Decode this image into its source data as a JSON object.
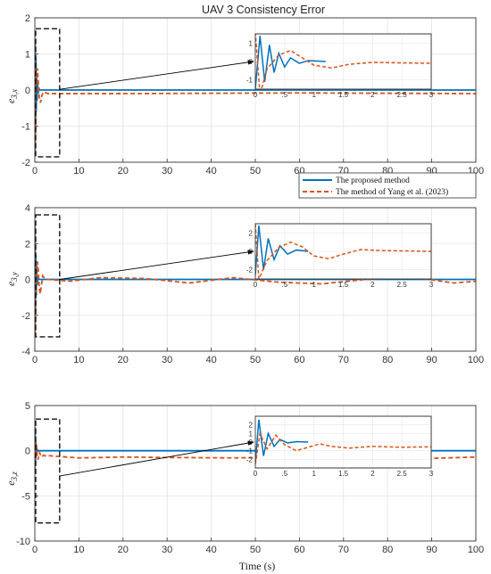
{
  "title": "UAV 3 Consistency Error",
  "xlabel": "Time (s)",
  "legend": [
    {
      "label": "The proposed method",
      "color": "#0072BD",
      "style": "solid"
    },
    {
      "label": "The method of Yang et al. (2023)",
      "color": "#D95319",
      "style": "dashed"
    }
  ],
  "chart_data": [
    {
      "type": "line",
      "ylabel_tex": {
        "base": "e",
        "sub": "3,x"
      },
      "xlim": [
        0,
        100
      ],
      "ylim": [
        -2,
        2
      ],
      "xticks": [
        0,
        10,
        20,
        30,
        40,
        50,
        60,
        70,
        80,
        90,
        100
      ],
      "yticks": [
        -2,
        -1,
        0,
        1,
        2
      ],
      "grid": true,
      "zoom_box": {
        "x": [
          0,
          3
        ],
        "y": [
          -1.85,
          1.7
        ]
      },
      "inset": {
        "xlim": [
          0,
          3
        ],
        "ylim": [
          -1.5,
          1.5
        ],
        "xticks": [
          0,
          0.5,
          1,
          1.5,
          2,
          2.5,
          3
        ],
        "yticks": [
          -1,
          0,
          1
        ]
      },
      "series": [
        {
          "name": "The proposed method",
          "color": "#0072BD",
          "dash": false,
          "points": [
            [
              0,
              -1.5
            ],
            [
              0.08,
              1.4
            ],
            [
              0.16,
              -1.1
            ],
            [
              0.24,
              0.9
            ],
            [
              0.32,
              -0.6
            ],
            [
              0.4,
              0.45
            ],
            [
              0.5,
              -0.3
            ],
            [
              0.6,
              0.2
            ],
            [
              0.75,
              -0.1
            ],
            [
              0.9,
              0.05
            ],
            [
              1.2,
              0
            ],
            [
              100,
              0
            ]
          ]
        },
        {
          "name": "The method of Yang et al. (2023)",
          "color": "#D95319",
          "dash": true,
          "points": [
            [
              0,
              1.6
            ],
            [
              0.08,
              -1.8
            ],
            [
              0.2,
              -0.4
            ],
            [
              0.4,
              0.35
            ],
            [
              0.6,
              0.6
            ],
            [
              0.8,
              0.2
            ],
            [
              1.0,
              -0.2
            ],
            [
              1.3,
              -0.35
            ],
            [
              1.6,
              -0.15
            ],
            [
              2.0,
              -0.05
            ],
            [
              3,
              -0.1
            ],
            [
              20,
              -0.1
            ],
            [
              60,
              -0.08
            ],
            [
              100,
              -0.1
            ]
          ]
        }
      ]
    },
    {
      "type": "line",
      "ylabel_tex": {
        "base": "e",
        "sub": "3,y"
      },
      "xlim": [
        0,
        100
      ],
      "ylim": [
        -4,
        4
      ],
      "xticks": [
        0,
        10,
        20,
        30,
        40,
        50,
        60,
        70,
        80,
        90,
        100
      ],
      "yticks": [
        -4,
        -2,
        0,
        2,
        4
      ],
      "grid": true,
      "zoom_box": {
        "x": [
          0,
          3
        ],
        "y": [
          -3.2,
          3.6
        ]
      },
      "inset": {
        "xlim": [
          0,
          3
        ],
        "ylim": [
          -3,
          3
        ],
        "xticks": [
          0,
          0.5,
          1,
          1.5,
          2,
          2.5,
          3
        ],
        "yticks": [
          -2,
          0,
          2
        ]
      },
      "series": [
        {
          "name": "The proposed method",
          "color": "#0072BD",
          "dash": false,
          "points": [
            [
              0,
              -2.6
            ],
            [
              0.06,
              2.8
            ],
            [
              0.14,
              -2.0
            ],
            [
              0.22,
              1.4
            ],
            [
              0.32,
              -0.9
            ],
            [
              0.42,
              0.6
            ],
            [
              0.55,
              -0.3
            ],
            [
              0.7,
              0.15
            ],
            [
              0.9,
              0
            ],
            [
              100,
              0
            ]
          ]
        },
        {
          "name": "The method of Yang et al. (2023)",
          "color": "#D95319",
          "dash": true,
          "points": [
            [
              0,
              3.0
            ],
            [
              0.06,
              -3.0
            ],
            [
              0.2,
              -1.0
            ],
            [
              0.4,
              0.4
            ],
            [
              0.6,
              1.0
            ],
            [
              0.8,
              0.5
            ],
            [
              1.0,
              -0.5
            ],
            [
              1.25,
              -0.8
            ],
            [
              1.5,
              -0.3
            ],
            [
              1.8,
              0.2
            ],
            [
              2.1,
              0.1
            ],
            [
              3,
              0
            ],
            [
              8,
              -0.1
            ],
            [
              15,
              0.1
            ],
            [
              25,
              0.05
            ],
            [
              35,
              -0.2
            ],
            [
              45,
              0.1
            ],
            [
              55,
              -0.15
            ],
            [
              65,
              -0.25
            ],
            [
              75,
              0
            ],
            [
              85,
              0.15
            ],
            [
              95,
              -0.2
            ],
            [
              100,
              -0.1
            ]
          ]
        }
      ]
    },
    {
      "type": "line",
      "ylabel_tex": {
        "base": "e",
        "sub": "3,z"
      },
      "xlim": [
        0,
        100
      ],
      "ylim": [
        -10,
        5
      ],
      "xticks": [
        0,
        10,
        20,
        30,
        40,
        50,
        60,
        70,
        80,
        90,
        100
      ],
      "yticks": [
        -10,
        -5,
        0,
        5
      ],
      "grid": true,
      "zoom_box": {
        "x": [
          0,
          3
        ],
        "y": [
          -8,
          3.5
        ]
      },
      "inset": {
        "xlim": [
          0,
          3
        ],
        "ylim": [
          -3,
          3
        ],
        "xticks": [
          0,
          0.5,
          1,
          1.5,
          2,
          2.5,
          3
        ],
        "yticks": [
          -2,
          -1,
          0,
          1,
          2
        ]
      },
      "series": [
        {
          "name": "The proposed method",
          "color": "#0072BD",
          "dash": false,
          "points": [
            [
              0,
              -2.5
            ],
            [
              0.06,
              2.6
            ],
            [
              0.14,
              -1.6
            ],
            [
              0.22,
              1.0
            ],
            [
              0.32,
              -0.5
            ],
            [
              0.42,
              0.3
            ],
            [
              0.55,
              -0.1
            ],
            [
              0.7,
              0.05
            ],
            [
              0.9,
              0
            ],
            [
              100,
              0
            ]
          ]
        },
        {
          "name": "The method of Yang et al. (2023)",
          "color": "#D95319",
          "dash": true,
          "points": [
            [
              0,
              -2.6
            ],
            [
              0.08,
              1.0
            ],
            [
              0.2,
              -0.8
            ],
            [
              0.35,
              0.8
            ],
            [
              0.5,
              -0.3
            ],
            [
              0.7,
              -1.0
            ],
            [
              0.9,
              -0.6
            ],
            [
              1.1,
              -0.2
            ],
            [
              1.3,
              -0.5
            ],
            [
              1.6,
              -0.7
            ],
            [
              2.0,
              -0.5
            ],
            [
              2.5,
              -0.6
            ],
            [
              3,
              -0.55
            ],
            [
              10,
              -0.8
            ],
            [
              20,
              -0.7
            ],
            [
              30,
              -0.75
            ],
            [
              45,
              -0.8
            ],
            [
              60,
              -0.7
            ],
            [
              75,
              -0.8
            ],
            [
              90,
              -0.85
            ],
            [
              100,
              -0.7
            ]
          ]
        }
      ]
    }
  ]
}
